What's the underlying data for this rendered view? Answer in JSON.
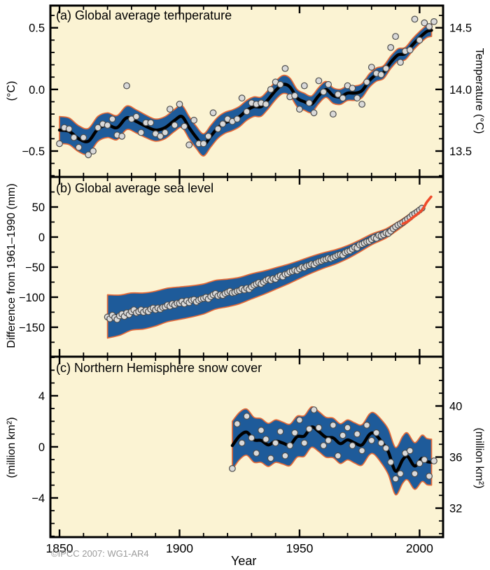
{
  "figure": {
    "xlabel": "Year",
    "copyright": "©IPCC  2007: WG1-AR4",
    "colors": {
      "plot_bg": "#FBF3D3",
      "band": "#1E5B9A",
      "band_outline": "#E56A38",
      "smoothed_line": "#000000",
      "scatter_fill": "#D9D9D9",
      "scatter_stroke": "#4D4D4D",
      "satellite": "#EF4B2B",
      "frame": "#000000",
      "text": "#000000",
      "copyright_text": "#9B9B9B"
    },
    "x_axis": {
      "range": [
        1846.2,
        2009.8
      ],
      "major": [
        1850,
        1900,
        1950,
        2000
      ],
      "major_labels": [
        "1850",
        "1900",
        "1950",
        "2000"
      ],
      "minor_anchor": 1850,
      "minor_step": 10
    }
  },
  "chart_data": [
    {
      "id": "a",
      "type": "line",
      "title": "(a) Global average temperature",
      "ylabel_left": "(°C)",
      "ylabel_right": "Temperature (°C)",
      "y_range": [
        -0.71,
        0.68
      ],
      "ticks_left": {
        "major": [
          {
            "v": 0.5,
            "label": "0.5"
          },
          {
            "v": 0.0,
            "label": "0.0"
          },
          {
            "v": -0.5,
            "label": "−0.5"
          }
        ],
        "minor_anchor": 0,
        "minor_step": 0.1
      },
      "ticks_right": {
        "major": [
          {
            "v": 0.5,
            "label": "14.5"
          },
          {
            "v": 0.0,
            "label": "14.0"
          },
          {
            "v": -0.5,
            "label": "13.5"
          }
        ],
        "minor_anchor": 0,
        "minor_step": 0.1
      },
      "scatter": {
        "start": 1850,
        "step": 2,
        "values": [
          -0.44,
          -0.31,
          -0.32,
          -0.39,
          -0.47,
          -0.39,
          -0.53,
          -0.5,
          -0.31,
          -0.28,
          -0.29,
          -0.24,
          -0.37,
          -0.38,
          0.03,
          -0.24,
          -0.22,
          -0.35,
          -0.27,
          -0.27,
          -0.36,
          -0.38,
          -0.35,
          -0.16,
          -0.29,
          -0.12,
          -0.3,
          -0.45,
          -0.25,
          -0.44,
          -0.44,
          -0.38,
          -0.19,
          -0.32,
          -0.28,
          -0.24,
          -0.26,
          -0.24,
          -0.07,
          -0.18,
          -0.11,
          -0.12,
          -0.11,
          -0.12,
          0.0,
          0.06,
          0.04,
          0.17,
          -0.06,
          -0.05,
          -0.16,
          0.03,
          -0.11,
          -0.19,
          0.07,
          -0.02,
          0.04,
          -0.2,
          -0.04,
          -0.07,
          0.03,
          0.01,
          -0.07,
          -0.12,
          0.06,
          0.18,
          0.13,
          0.12,
          0.17,
          0.34,
          0.43,
          0.22,
          0.31,
          0.32,
          0.57,
          0.4,
          0.54,
          0.51,
          0.55
        ]
      },
      "smoothed": [
        [
          1850,
          -0.33
        ],
        [
          1854,
          -0.34
        ],
        [
          1858,
          -0.4
        ],
        [
          1862,
          -0.42
        ],
        [
          1866,
          -0.32
        ],
        [
          1870,
          -0.29
        ],
        [
          1874,
          -0.31
        ],
        [
          1878,
          -0.23
        ],
        [
          1882,
          -0.26
        ],
        [
          1886,
          -0.3
        ],
        [
          1890,
          -0.33
        ],
        [
          1894,
          -0.31
        ],
        [
          1898,
          -0.25
        ],
        [
          1901,
          -0.22
        ],
        [
          1904,
          -0.31
        ],
        [
          1907,
          -0.39
        ],
        [
          1910,
          -0.45
        ],
        [
          1913,
          -0.38
        ],
        [
          1916,
          -0.31
        ],
        [
          1919,
          -0.27
        ],
        [
          1922,
          -0.25
        ],
        [
          1925,
          -0.22
        ],
        [
          1928,
          -0.17
        ],
        [
          1931,
          -0.14
        ],
        [
          1934,
          -0.14
        ],
        [
          1937,
          -0.08
        ],
        [
          1940,
          -0.01
        ],
        [
          1943,
          0.04
        ],
        [
          1946,
          0.02
        ],
        [
          1949,
          -0.07
        ],
        [
          1952,
          -0.1
        ],
        [
          1955,
          -0.12
        ],
        [
          1958,
          -0.05
        ],
        [
          1961,
          0.0
        ],
        [
          1964,
          -0.05
        ],
        [
          1967,
          -0.06
        ],
        [
          1970,
          -0.03
        ],
        [
          1973,
          -0.03
        ],
        [
          1976,
          -0.01
        ],
        [
          1979,
          0.07
        ],
        [
          1982,
          0.12
        ],
        [
          1985,
          0.14
        ],
        [
          1988,
          0.22
        ],
        [
          1991,
          0.28
        ],
        [
          1994,
          0.29
        ],
        [
          1997,
          0.36
        ],
        [
          2000,
          0.42
        ],
        [
          2003,
          0.47
        ],
        [
          2005,
          0.48
        ]
      ],
      "band_halfwidth": [
        [
          1850,
          0.11
        ],
        [
          1870,
          0.1
        ],
        [
          1890,
          0.09
        ],
        [
          1910,
          0.09
        ],
        [
          1930,
          0.08
        ],
        [
          1950,
          0.07
        ],
        [
          1970,
          0.06
        ],
        [
          1990,
          0.05
        ],
        [
          2005,
          0.05
        ]
      ]
    },
    {
      "id": "b",
      "type": "line",
      "title": "(b) Global average sea level",
      "ylabel_left": "Difference from 1961–1990 (mm)",
      "ylabel_right": "",
      "y_range": [
        -199,
        100
      ],
      "ticks_left": {
        "major": [
          {
            "v": 50,
            "label": "50"
          },
          {
            "v": 0,
            "label": "0"
          },
          {
            "v": -50,
            "label": "−50"
          },
          {
            "v": -100,
            "label": "−100"
          },
          {
            "v": -150,
            "label": "−150"
          }
        ],
        "minor_anchor": 0,
        "minor_step": 25
      },
      "ticks_right": {
        "major": [
          {
            "v": 50,
            "label": ""
          },
          {
            "v": 0,
            "label": ""
          },
          {
            "v": -50,
            "label": ""
          },
          {
            "v": -100,
            "label": ""
          },
          {
            "v": -150,
            "label": ""
          }
        ],
        "minor_anchor": 0,
        "minor_step": 25
      },
      "scatter": {
        "start": 1870,
        "step": 1,
        "values": [
          -133,
          -136,
          -130,
          -134,
          -137,
          -131,
          -128,
          -132,
          -126,
          -129,
          -124,
          -121,
          -126,
          -124,
          -121,
          -125,
          -122,
          -124,
          -120,
          -118,
          -121,
          -118,
          -120,
          -117,
          -116,
          -113,
          -115,
          -111,
          -113,
          -110,
          -110,
          -107,
          -111,
          -106,
          -109,
          -105,
          -104,
          -108,
          -105,
          -103,
          -102,
          -100,
          -103,
          -99,
          -96,
          -94,
          -98,
          -96,
          -97,
          -94,
          -92,
          -90,
          -93,
          -92,
          -90,
          -89,
          -86,
          -88,
          -85,
          -87,
          -83,
          -80,
          -78,
          -76,
          -78,
          -75,
          -72,
          -70,
          -72,
          -69,
          -70,
          -66,
          -64,
          -66,
          -62,
          -61,
          -58,
          -57,
          -55,
          -56,
          -53,
          -50,
          -51,
          -48,
          -47,
          -45,
          -46,
          -43,
          -41,
          -40,
          -38,
          -37,
          -35,
          -36,
          -34,
          -32,
          -30,
          -29,
          -30,
          -26,
          -24,
          -23,
          -20,
          -17,
          -18,
          -13,
          -12,
          -10,
          -8,
          -7,
          -4,
          -1,
          -2,
          3,
          2,
          4,
          7,
          6,
          10,
          14,
          17,
          20,
          22,
          24,
          27,
          30,
          33,
          37,
          39,
          42,
          45,
          48
        ]
      },
      "smoothed": [
        [
          1870,
          -132
        ],
        [
          1875,
          -130
        ],
        [
          1880,
          -124
        ],
        [
          1885,
          -123
        ],
        [
          1890,
          -119
        ],
        [
          1895,
          -113
        ],
        [
          1900,
          -110
        ],
        [
          1905,
          -107
        ],
        [
          1910,
          -103
        ],
        [
          1915,
          -96
        ],
        [
          1920,
          -93
        ],
        [
          1925,
          -89
        ],
        [
          1930,
          -82
        ],
        [
          1935,
          -76
        ],
        [
          1940,
          -69
        ],
        [
          1945,
          -62
        ],
        [
          1950,
          -54
        ],
        [
          1955,
          -46
        ],
        [
          1960,
          -39
        ],
        [
          1965,
          -33
        ],
        [
          1970,
          -25
        ],
        [
          1975,
          -15
        ],
        [
          1980,
          -4
        ],
        [
          1983,
          1
        ],
        [
          1986,
          6
        ],
        [
          1990,
          16
        ],
        [
          1994,
          27
        ],
        [
          1998,
          39
        ],
        [
          2001,
          48
        ]
      ],
      "band_halfwidth": [
        [
          1870,
          36
        ],
        [
          1880,
          31
        ],
        [
          1890,
          29
        ],
        [
          1900,
          27
        ],
        [
          1910,
          25
        ],
        [
          1920,
          23
        ],
        [
          1930,
          21
        ],
        [
          1940,
          18
        ],
        [
          1950,
          15
        ],
        [
          1960,
          13
        ],
        [
          1970,
          11
        ],
        [
          1980,
          9
        ],
        [
          1990,
          7
        ],
        [
          1995,
          6
        ],
        [
          2001,
          5
        ]
      ],
      "satellite_line": [
        [
          1993,
          22
        ],
        [
          1995,
          26
        ],
        [
          1997,
          32
        ],
        [
          1999,
          38
        ],
        [
          2000,
          41
        ],
        [
          2001,
          45
        ],
        [
          2002,
          51
        ],
        [
          2003,
          58
        ],
        [
          2004,
          63
        ],
        [
          2004.8,
          67
        ]
      ]
    },
    {
      "id": "c",
      "type": "line",
      "title": "(c) Northern Hemisphere snow cover",
      "ylabel_left": "(million km²)",
      "ylabel_right": "(million km²)",
      "y_range": [
        -7.07,
        7.06
      ],
      "ticks_left": {
        "major": [
          {
            "v": 4,
            "label": "4"
          },
          {
            "v": 0,
            "label": "0"
          },
          {
            "v": -4,
            "label": "−4"
          }
        ],
        "minor_anchor": 0,
        "minor_step": 1
      },
      "ticks_right": {
        "major": [
          {
            "v": 3.2,
            "label": "40"
          },
          {
            "v": -0.8,
            "label": "36"
          },
          {
            "v": -4.8,
            "label": "32"
          }
        ],
        "minor_anchor": 0.2,
        "minor_step": 1
      },
      "scatter": {
        "start": 1922,
        "step": 2,
        "values": [
          -1.7,
          1.8,
          0.3,
          2.4,
          0.7,
          -0.5,
          1.3,
          0.6,
          -0.9,
          0.3,
          1.2,
          -0.7,
          0.1,
          1.1,
          2.1,
          0.3,
          1.4,
          2.9,
          1.5,
          0.1,
          0.5,
          1.7,
          -0.7,
          0.9,
          1.5,
          0.1,
          1.0,
          -0.3,
          1.7,
          0.5,
          1.1,
          0.3,
          -0.1,
          -1.2,
          -2.5,
          -2.1,
          -0.5,
          -0.3,
          -2.1,
          -1.3,
          -1.0,
          -2.3,
          -1.1
        ]
      },
      "smoothed": [
        [
          1922,
          0.1
        ],
        [
          1925,
          0.85
        ],
        [
          1928,
          1.15
        ],
        [
          1931,
          0.55
        ],
        [
          1934,
          0.5
        ],
        [
          1937,
          0.15
        ],
        [
          1940,
          0.45
        ],
        [
          1943,
          0.3
        ],
        [
          1946,
          0.15
        ],
        [
          1949,
          0.8
        ],
        [
          1952,
          0.85
        ],
        [
          1955,
          1.55
        ],
        [
          1958,
          1.2
        ],
        [
          1961,
          0.75
        ],
        [
          1964,
          0.7
        ],
        [
          1967,
          0.25
        ],
        [
          1970,
          0.55
        ],
        [
          1973,
          0.3
        ],
        [
          1976,
          0.15
        ],
        [
          1979,
          0.95
        ],
        [
          1981,
          1.05
        ],
        [
          1984,
          0.45
        ],
        [
          1987,
          -0.4
        ],
        [
          1990,
          -1.9
        ],
        [
          1993,
          -1.0
        ],
        [
          1995,
          -0.75
        ],
        [
          1998,
          -1.5
        ],
        [
          2001,
          -0.9
        ],
        [
          2003,
          -1.15
        ],
        [
          2005,
          -1.2
        ]
      ],
      "band_halfwidth": [
        [
          1922,
          1.9
        ],
        [
          1935,
          1.7
        ],
        [
          1950,
          1.6
        ],
        [
          1965,
          1.55
        ],
        [
          1980,
          1.6
        ],
        [
          1990,
          1.85
        ],
        [
          2005,
          1.8
        ]
      ]
    }
  ]
}
